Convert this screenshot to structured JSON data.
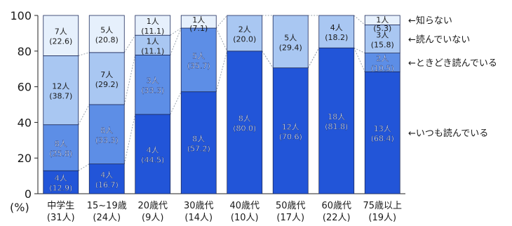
{
  "chart_data": {
    "type": "bar",
    "stacked": true,
    "ylim": [
      0,
      100
    ],
    "yticks": [
      "0",
      "20",
      "40",
      "60",
      "80",
      "100"
    ],
    "ylabel": "(%)",
    "grid": false,
    "legend_placement": "right",
    "categories": [
      {
        "line1": "中学生",
        "line2": "(31人)"
      },
      {
        "line1": "15~19歳",
        "line2": "(24人)"
      },
      {
        "line1": "20歳代",
        "line2": "(9人)"
      },
      {
        "line1": "30歳代",
        "line2": "(14人)"
      },
      {
        "line1": "40歳代",
        "line2": "(10人)"
      },
      {
        "line1": "50歳代",
        "line2": "(17人)"
      },
      {
        "line1": "60歳代",
        "line2": "(22人)"
      },
      {
        "line1": "75歳以上",
        "line2": "(19人)"
      }
    ],
    "series": [
      {
        "name": "いつも読んでいる",
        "color": "#2255d8",
        "values": [
          12.9,
          16.7,
          44.5,
          57.2,
          80.0,
          70.6,
          81.8,
          68.4
        ],
        "counts": [
          "4人",
          "4人",
          "4人",
          "8人",
          "8人",
          "12人",
          "18人",
          "13人"
        ],
        "pct_labels": [
          "(12.9)",
          "(16.7)",
          "(44.5)",
          "(57.2)",
          "(80.0)",
          "(70.6)",
          "(81.8)",
          "(68.4)"
        ]
      },
      {
        "name": "ときどき読んでいる",
        "color": "#5d8ee6",
        "values": [
          25.8,
          33.3,
          33.3,
          35.7,
          0,
          0,
          0,
          10.5
        ],
        "counts": [
          "8人",
          "8人",
          "3人",
          "5人",
          "",
          "",
          "",
          "2人"
        ],
        "pct_labels": [
          "(25.8)",
          "(33.3)",
          "(33.3)",
          "(35.7)",
          "",
          "",
          "",
          "(10.5)"
        ]
      },
      {
        "name": "読んでいない",
        "color": "#a9c7f2",
        "values": [
          38.7,
          29.2,
          11.1,
          0,
          20.0,
          29.4,
          18.2,
          15.8
        ],
        "counts": [
          "12人",
          "7人",
          "1人",
          "",
          "2人",
          "5人",
          "4人",
          "3人"
        ],
        "pct_labels": [
          "(38.7)",
          "(29.2)",
          "(11.1)",
          "",
          "(20.0)",
          "(29.4)",
          "(18.2)",
          "(15.8)"
        ]
      },
      {
        "name": "知らない",
        "color": "#e6f0fc",
        "values": [
          22.6,
          20.8,
          11.1,
          7.1,
          0,
          0,
          0,
          5.3
        ],
        "counts": [
          "7人",
          "5人",
          "1人",
          "1人",
          "",
          "",
          "",
          "1人"
        ],
        "pct_labels": [
          "(22.6)",
          "(20.8)",
          "(11.1)",
          "(7.1)",
          "",
          "",
          "",
          "(5.3)"
        ]
      }
    ],
    "legend": [
      {
        "label": "←知らない",
        "series": 3
      },
      {
        "label": "←読んでいない",
        "series": 2
      },
      {
        "label": "←ときどき読んでいる",
        "series": 1
      },
      {
        "label": "←いつも読んでいる",
        "series": 0
      }
    ]
  }
}
